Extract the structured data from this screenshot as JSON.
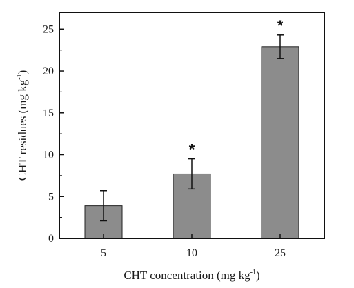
{
  "chart_data": {
    "type": "bar",
    "categories": [
      "5",
      "10",
      "25"
    ],
    "values": [
      3.9,
      7.7,
      22.9
    ],
    "errors": [
      1.8,
      1.8,
      1.4
    ],
    "significance": [
      "",
      "*",
      "*"
    ],
    "xlabel": "CHT concentration (mg kg",
    "xlabel_sup": "-1",
    "xlabel_end": ")",
    "ylabel": "CHT residues (mg kg",
    "ylabel_sup": "-1",
    "ylabel_end": ")",
    "ylim": [
      0,
      27
    ],
    "yticks": [
      "0",
      "5",
      "10",
      "15",
      "20",
      "25"
    ],
    "ytick_values": [
      0,
      5,
      10,
      15,
      20,
      25
    ],
    "bar_color": "#8c8c8c",
    "grid": false
  }
}
